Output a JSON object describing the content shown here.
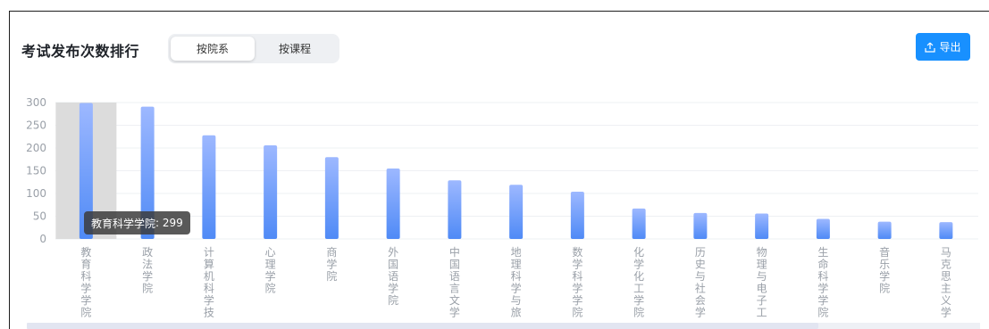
{
  "header": {
    "title": "考试发布次数排行",
    "toggle": [
      "按院系",
      "按课程"
    ],
    "toggle_active_index": 0,
    "export_label": "导出"
  },
  "colors": {
    "accent": "#1890ff",
    "bar_top": "#9db8ff",
    "bar_bottom": "#4f8af6",
    "highlight_bg": "#dcdcdc",
    "axis_text": "#9aa0a8",
    "grid": "#eef0f3"
  },
  "icons": {
    "export": "upload-icon"
  },
  "tooltip": {
    "label": "教育科学学院",
    "value": "299"
  },
  "chart_data": {
    "type": "bar",
    "categories": [
      "教育科学学院",
      "政法学院",
      "计算机科学技",
      "心理学院",
      "商学院",
      "外国语学院",
      "中国语言文学",
      "地理科学与旅",
      "数学科学学院",
      "化学化工学院",
      "历史与社会学",
      "物理与电子工",
      "生命科学学院",
      "音乐学院",
      "马克思主义学"
    ],
    "values": [
      299,
      291,
      228,
      206,
      180,
      155,
      129,
      119,
      104,
      67,
      57,
      56,
      44,
      38,
      37
    ],
    "ylim": [
      0,
      300
    ],
    "yticks": [
      0,
      50,
      100,
      150,
      200,
      250,
      300
    ],
    "highlighted_index": 0,
    "grid": true
  }
}
